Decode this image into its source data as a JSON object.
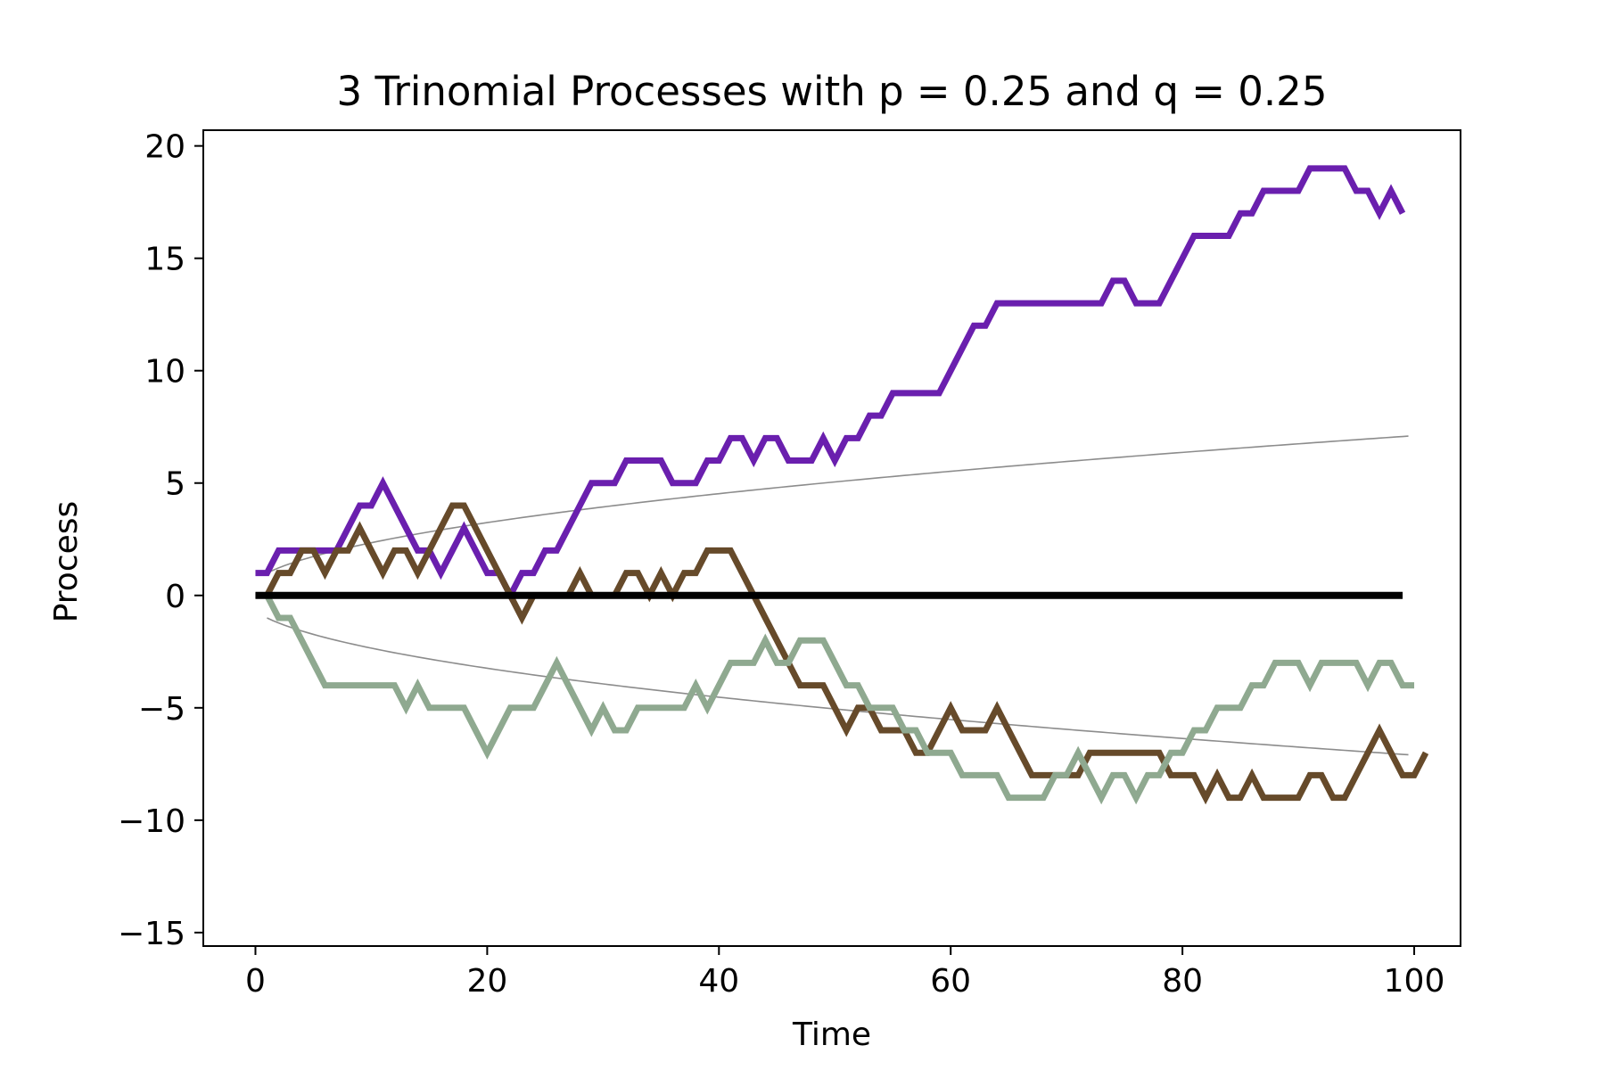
{
  "chart_data": {
    "type": "line",
    "title": "3 Trinomial Processes with p = 0.25 and q = 0.25",
    "xlabel": "Time",
    "ylabel": "Process",
    "xlim": [
      -4.5,
      104
    ],
    "ylim": [
      -15.6,
      20.7
    ],
    "xticks": [
      0,
      20,
      40,
      60,
      80,
      100
    ],
    "yticks": [
      -15,
      -10,
      -5,
      0,
      5,
      10,
      15,
      20
    ],
    "grid": false,
    "legend": "none",
    "x_start": 0,
    "series": [
      {
        "color": "#6a1fae",
        "values": [
          1,
          1,
          2,
          2,
          2,
          2,
          2,
          2,
          3,
          4,
          4,
          5,
          4,
          3,
          2,
          2,
          1,
          2,
          3,
          2,
          1,
          1,
          0,
          1,
          1,
          2,
          2,
          3,
          4,
          5,
          5,
          5,
          6,
          6,
          6,
          6,
          5,
          5,
          5,
          6,
          6,
          7,
          7,
          6,
          7,
          7,
          6,
          6,
          6,
          7,
          6,
          7,
          7,
          8,
          8,
          9,
          9,
          9,
          9,
          9,
          10,
          11,
          12,
          12,
          13,
          13,
          13,
          13,
          13,
          13,
          13,
          13,
          13,
          13,
          14,
          14,
          13,
          13,
          13,
          14,
          15,
          16,
          16,
          16,
          16,
          17,
          17,
          18,
          18,
          18,
          18,
          19,
          19,
          19,
          19,
          18,
          18,
          17,
          18,
          17
        ]
      },
      {
        "color": "#664a2a",
        "values": [
          0,
          0,
          1,
          1,
          2,
          2,
          1,
          2,
          2,
          3,
          2,
          1,
          2,
          2,
          1,
          2,
          3,
          4,
          4,
          3,
          2,
          1,
          0,
          -1,
          0,
          0,
          0,
          0,
          1,
          0,
          0,
          0,
          1,
          1,
          0,
          1,
          0,
          1,
          1,
          2,
          2,
          2,
          1,
          0,
          -1,
          -2,
          -3,
          -4,
          -4,
          -4,
          -5,
          -6,
          -5,
          -5,
          -6,
          -6,
          -6,
          -7,
          -7,
          -6,
          -5,
          -6,
          -6,
          -6,
          -5,
          -6,
          -7,
          -8,
          -8,
          -8,
          -8,
          -8,
          -7,
          -7,
          -7,
          -7,
          -7,
          -7,
          -7,
          -8,
          -8,
          -8,
          -9,
          -8,
          -9,
          -9,
          -8,
          -9,
          -9,
          -9,
          -9,
          -8,
          -8,
          -9,
          -9,
          -8,
          -7,
          -6,
          -7,
          -8,
          -8,
          -7
        ]
      },
      {
        "color": "#8fa990",
        "values": [
          0,
          0,
          -1,
          -1,
          -2,
          -3,
          -4,
          -4,
          -4,
          -4,
          -4,
          -4,
          -4,
          -5,
          -4,
          -5,
          -5,
          -5,
          -5,
          -6,
          -7,
          -6,
          -5,
          -5,
          -5,
          -4,
          -3,
          -4,
          -5,
          -6,
          -5,
          -6,
          -6,
          -5,
          -5,
          -5,
          -5,
          -5,
          -4,
          -5,
          -4,
          -3,
          -3,
          -3,
          -2,
          -3,
          -3,
          -2,
          -2,
          -2,
          -3,
          -4,
          -4,
          -5,
          -5,
          -5,
          -6,
          -6,
          -7,
          -7,
          -7,
          -8,
          -8,
          -8,
          -8,
          -9,
          -9,
          -9,
          -9,
          -8,
          -8,
          -7,
          -8,
          -9,
          -8,
          -8,
          -9,
          -8,
          -8,
          -7,
          -7,
          -6,
          -6,
          -5,
          -5,
          -5,
          -4,
          -4,
          -3,
          -3,
          -3,
          -4,
          -3,
          -3,
          -3,
          -3,
          -4,
          -3,
          -3,
          -4,
          -4
        ]
      }
    ],
    "reference_line": {
      "value": 0,
      "color": "#000000"
    },
    "envelope": {
      "formula": "±sqrt(2·p·t)",
      "color": "#8c8c8c"
    }
  }
}
